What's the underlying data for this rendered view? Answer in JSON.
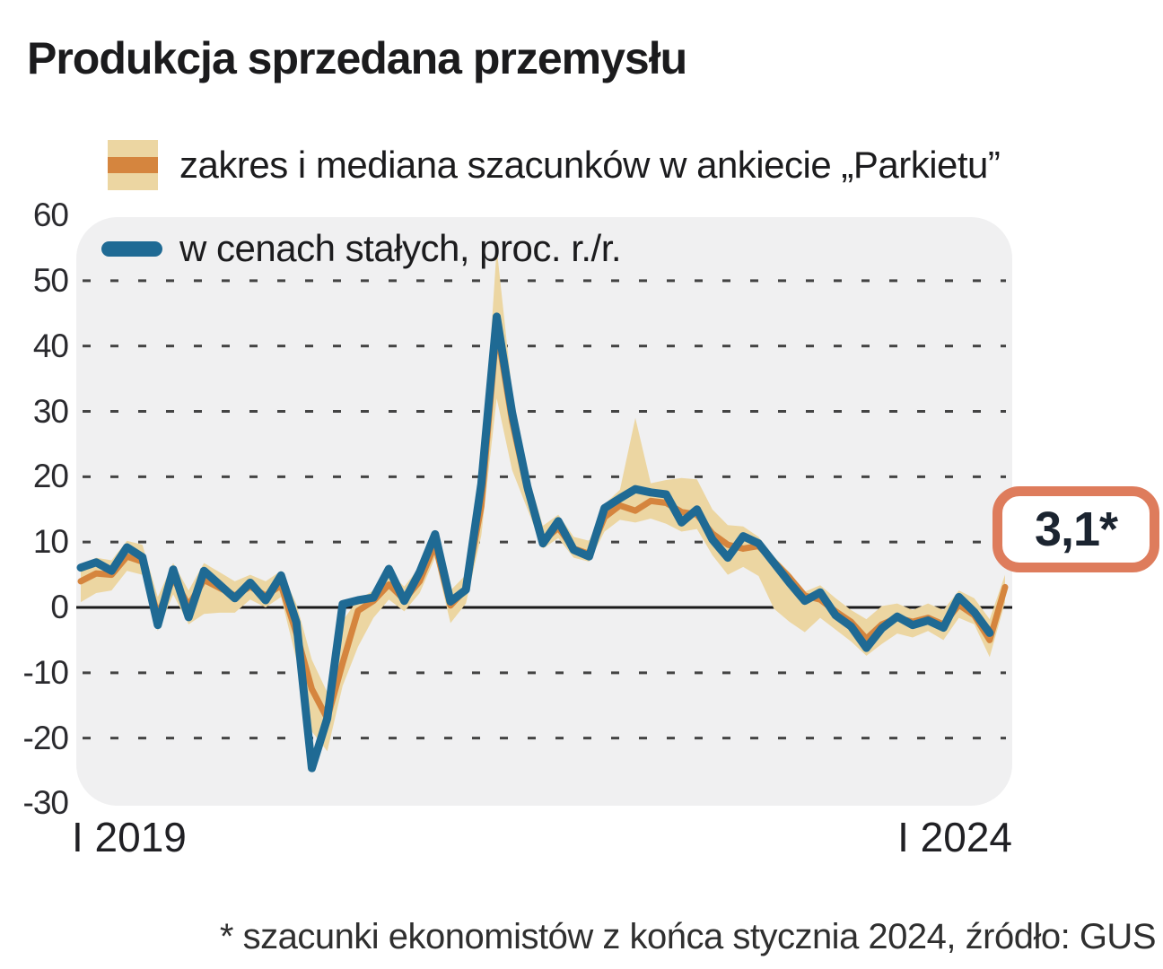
{
  "title": "Produkcja sprzedana przemysłu",
  "legend": {
    "items": [
      {
        "label": "zakres i mediana szacunków w ankiecie „Parkietu”",
        "swatch": "band-with-median-stripe"
      },
      {
        "label": "w cenach stałych, proc. r./r.",
        "swatch": "line-pill"
      }
    ]
  },
  "annotation_badge": {
    "label": "3,1*",
    "value": 3.1
  },
  "footnote": "* szacunki ekonomistów z końca stycznia 2024, źródło: GUS",
  "colors": {
    "page_bg": "#ffffff",
    "plot_bg": "#f0f0f1",
    "band": "#ecd6a2",
    "median_line": "#d5853e",
    "actual_line": "#1f6a94",
    "gridline": "#444444",
    "zero_line": "#1a1a1a",
    "badge_border": "#de7c5c",
    "text": "#1c1c1e"
  },
  "chart_data": {
    "type": "line",
    "title": "Produkcja sprzedana przemysłu",
    "xlabel": "",
    "ylabel": "proc. r./r.",
    "ylim": [
      -30,
      60
    ],
    "grid": "dashed-horizontal",
    "legend_position": "top-left",
    "yticks": [
      60,
      50,
      40,
      30,
      20,
      10,
      0,
      -10,
      -20,
      -30
    ],
    "xtick_labels": [
      "I 2019",
      "I 2024"
    ],
    "x_months": [
      "2019-01",
      "2019-02",
      "2019-03",
      "2019-04",
      "2019-05",
      "2019-06",
      "2019-07",
      "2019-08",
      "2019-09",
      "2019-10",
      "2019-11",
      "2019-12",
      "2020-01",
      "2020-02",
      "2020-03",
      "2020-04",
      "2020-05",
      "2020-06",
      "2020-07",
      "2020-08",
      "2020-09",
      "2020-10",
      "2020-11",
      "2020-12",
      "2021-01",
      "2021-02",
      "2021-03",
      "2021-04",
      "2021-05",
      "2021-06",
      "2021-07",
      "2021-08",
      "2021-09",
      "2021-10",
      "2021-11",
      "2021-12",
      "2022-01",
      "2022-02",
      "2022-03",
      "2022-04",
      "2022-05",
      "2022-06",
      "2022-07",
      "2022-08",
      "2022-09",
      "2022-10",
      "2022-11",
      "2022-12",
      "2023-01",
      "2023-02",
      "2023-03",
      "2023-04",
      "2023-05",
      "2023-06",
      "2023-07",
      "2023-08",
      "2023-09",
      "2023-10",
      "2023-11",
      "2023-12",
      "2024-01"
    ],
    "series": [
      {
        "name": "zakres szacunków w ankiecie „Parkietu”",
        "type": "band",
        "upper": [
          6.4,
          7.6,
          7.2,
          10.2,
          9.6,
          1.6,
          6.8,
          2.6,
          6.8,
          5.4,
          4.0,
          5.0,
          4.0,
          5.6,
          0.5,
          -8.0,
          -13.0,
          -2.0,
          1.2,
          2.6,
          5.4,
          3.2,
          6.2,
          11.4,
          2.6,
          5.0,
          18.5,
          55.0,
          33.0,
          20.5,
          12.5,
          14.2,
          10.8,
          10.2,
          15.8,
          18.0,
          29.0,
          19.0,
          19.5,
          19.8,
          19.6,
          15.0,
          12.6,
          12.4,
          10.8,
          7.8,
          5.4,
          2.4,
          3.4,
          1.4,
          -0.4,
          -1.8,
          0.2,
          0.6,
          -0.4,
          0.6,
          -0.4,
          2.6,
          1.4,
          -1.8,
          5.0
        ],
        "lower": [
          0.8,
          2.2,
          2.6,
          5.6,
          5.0,
          -3.6,
          2.0,
          -2.6,
          -1.0,
          -0.8,
          -0.8,
          1.2,
          0.0,
          1.6,
          -8.0,
          -19.0,
          -22.0,
          -12.0,
          -6.0,
          -1.6,
          1.2,
          -0.6,
          2.2,
          7.6,
          -2.4,
          0.6,
          11.0,
          32.0,
          21.0,
          15.0,
          9.0,
          10.6,
          7.6,
          7.0,
          11.6,
          13.4,
          13.0,
          13.6,
          12.8,
          11.6,
          12.0,
          8.0,
          5.0,
          6.2,
          4.8,
          -0.2,
          -2.2,
          -3.8,
          -1.6,
          -3.4,
          -5.2,
          -7.4,
          -5.6,
          -4.0,
          -4.6,
          -3.6,
          -5.0,
          -1.6,
          -2.6,
          -7.6,
          0.8
        ]
      },
      {
        "name": "mediana szacunków w ankiecie „Parkietu”",
        "type": "line",
        "color": "#d5853e",
        "values": [
          4.0,
          5.2,
          5.0,
          7.8,
          7.0,
          -1.2,
          4.5,
          0.3,
          4.2,
          3.0,
          1.8,
          3.2,
          1.8,
          3.4,
          -4.0,
          -12.5,
          -17.0,
          -8.5,
          -0.5,
          1.0,
          3.5,
          1.2,
          4.0,
          9.6,
          0.3,
          2.8,
          15.5,
          42.8,
          28.5,
          17.8,
          10.2,
          12.2,
          9.0,
          8.2,
          13.8,
          15.6,
          14.8,
          16.3,
          16.0,
          14.6,
          14.2,
          11.3,
          9.6,
          9.0,
          9.4,
          7.0,
          4.6,
          1.8,
          1.2,
          -0.6,
          -2.2,
          -4.8,
          -2.6,
          -1.6,
          -2.2,
          -1.6,
          -2.6,
          0.4,
          -1.2,
          -5.0,
          3.1
        ]
      },
      {
        "name": "w cenach stałych, proc. r./r.",
        "type": "line",
        "color": "#1f6a94",
        "values": [
          6.1,
          6.9,
          5.6,
          9.2,
          7.7,
          -2.7,
          5.8,
          -1.5,
          5.6,
          3.5,
          1.4,
          3.8,
          1.1,
          4.9,
          -2.3,
          -24.6,
          -17.0,
          0.5,
          1.1,
          1.5,
          5.9,
          1.0,
          5.4,
          11.2,
          0.9,
          2.7,
          18.9,
          44.5,
          29.8,
          18.4,
          9.8,
          13.2,
          8.8,
          7.8,
          15.2,
          16.7,
          18.1,
          17.6,
          17.3,
          13.0,
          15.0,
          10.4,
          7.6,
          10.9,
          9.8,
          6.8,
          3.8,
          1.0,
          2.3,
          -1.2,
          -2.9,
          -6.2,
          -3.2,
          -1.4,
          -2.7,
          -2.0,
          -3.1,
          1.6,
          -0.7,
          -3.9,
          null
        ]
      }
    ],
    "annotation": {
      "text": "3,1*",
      "month": "2024-01",
      "value": 3.1
    }
  }
}
